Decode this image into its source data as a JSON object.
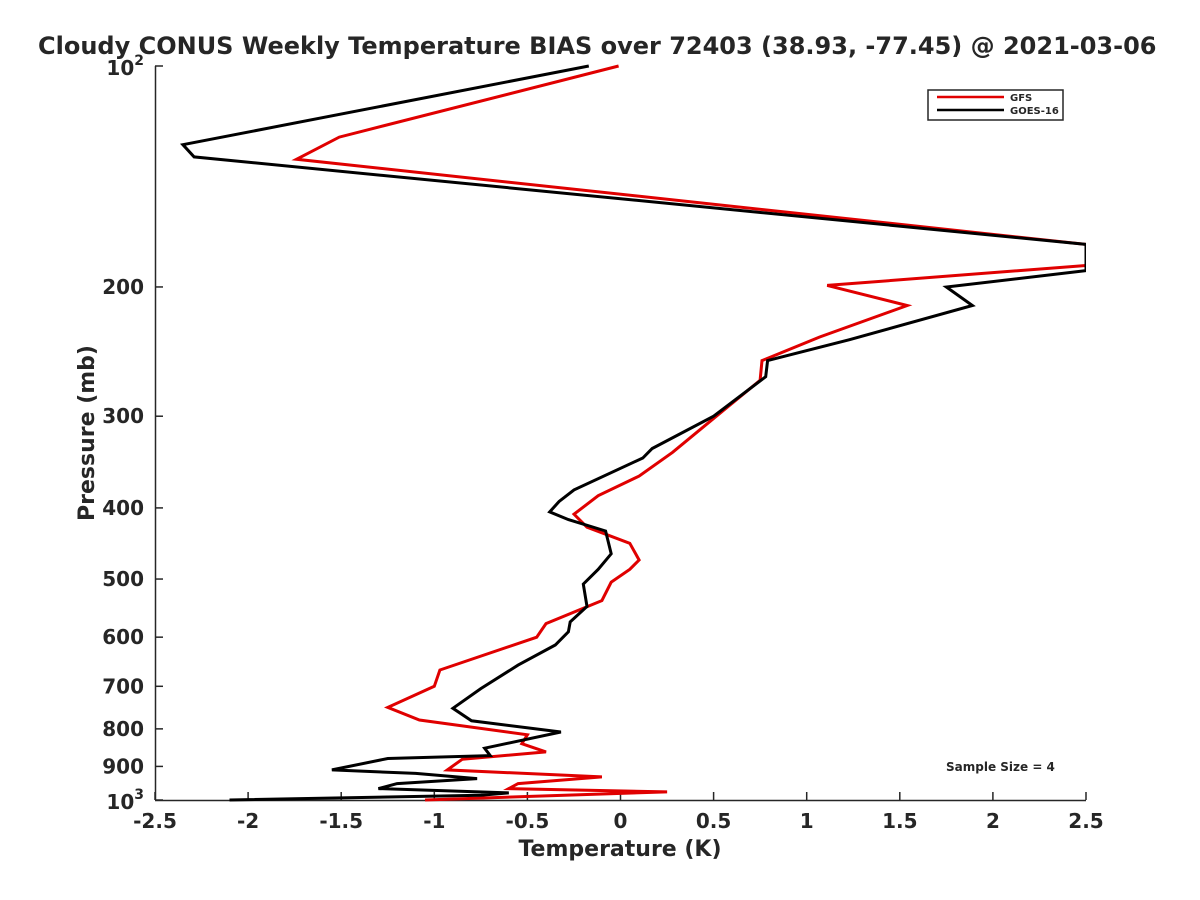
{
  "chart_data": {
    "type": "line",
    "title": "Cloudy CONUS Weekly Temperature BIAS over 72403 (38.93, -77.45) @ 2021-03-06",
    "xlabel": "Temperature (K)",
    "ylabel": "Pressure (mb)",
    "xlim": [
      -2.5,
      2.5
    ],
    "ylim": [
      1000,
      100
    ],
    "y_scale": "log",
    "y_reversed": true,
    "x_ticks": [
      -2.5,
      -2,
      -1.5,
      -1,
      -0.5,
      0,
      0.5,
      1,
      1.5,
      2,
      2.5
    ],
    "x_tick_labels": [
      "-2.5",
      "-2",
      "-1.5",
      "-1",
      "-0.5",
      "0",
      "0.5",
      "1",
      "1.5",
      "2",
      "2.5"
    ],
    "y_ticks_plain": [
      {
        "value": 200,
        "label": "200"
      },
      {
        "value": 300,
        "label": "300"
      },
      {
        "value": 400,
        "label": "400"
      },
      {
        "value": 500,
        "label": "500"
      },
      {
        "value": 600,
        "label": "600"
      },
      {
        "value": 700,
        "label": "700"
      },
      {
        "value": 800,
        "label": "800"
      },
      {
        "value": 900,
        "label": "900"
      }
    ],
    "y_ticks_pow": [
      {
        "value": 100,
        "base": "10",
        "exp": "2"
      },
      {
        "value": 1000,
        "base": "10",
        "exp": "3"
      }
    ],
    "grid": false,
    "legend_position": "top-right",
    "annotation": "Sample Size = 4",
    "series": [
      {
        "name": "GFS",
        "color": "#e00000",
        "points": [
          [
            -0.01,
            100
          ],
          [
            -1.51,
            125
          ],
          [
            -1.74,
            134
          ],
          [
            2.5,
            175
          ],
          [
            2.5,
            187
          ],
          [
            1.11,
            199
          ],
          [
            1.54,
            212
          ],
          [
            1.07,
            234
          ],
          [
            0.76,
            252
          ],
          [
            0.75,
            268
          ],
          [
            0.55,
            295
          ],
          [
            0.28,
            336
          ],
          [
            0.1,
            362
          ],
          [
            -0.12,
            385
          ],
          [
            -0.25,
            408
          ],
          [
            -0.18,
            425
          ],
          [
            0.05,
            447
          ],
          [
            0.1,
            471
          ],
          [
            0.05,
            485
          ],
          [
            -0.05,
            505
          ],
          [
            -0.1,
            535
          ],
          [
            -0.4,
            575
          ],
          [
            -0.45,
            600
          ],
          [
            -0.97,
            665
          ],
          [
            -1.0,
            700
          ],
          [
            -1.25,
            748
          ],
          [
            -1.08,
            778
          ],
          [
            -0.5,
            815
          ],
          [
            -0.53,
            838
          ],
          [
            -0.4,
            860
          ],
          [
            -0.85,
            880
          ],
          [
            -0.93,
            910
          ],
          [
            -0.1,
            930
          ],
          [
            -0.55,
            950
          ],
          [
            -0.6,
            965
          ],
          [
            0.25,
            975
          ],
          [
            -0.3,
            985
          ],
          [
            -1.05,
            1000
          ]
        ]
      },
      {
        "name": "GOES-16",
        "color": "#000000",
        "points": [
          [
            -0.17,
            100
          ],
          [
            -2.35,
            128
          ],
          [
            -2.29,
            133
          ],
          [
            2.5,
            175
          ],
          [
            2.5,
            190
          ],
          [
            1.75,
            200
          ],
          [
            1.89,
            212
          ],
          [
            1.23,
            236
          ],
          [
            0.79,
            252
          ],
          [
            0.78,
            265
          ],
          [
            0.5,
            300
          ],
          [
            0.17,
            332
          ],
          [
            0.12,
            342
          ],
          [
            -0.25,
            378
          ],
          [
            -0.33,
            392
          ],
          [
            -0.38,
            405
          ],
          [
            -0.28,
            415
          ],
          [
            -0.08,
            430
          ],
          [
            -0.05,
            462
          ],
          [
            -0.12,
            485
          ],
          [
            -0.2,
            508
          ],
          [
            -0.18,
            545
          ],
          [
            -0.27,
            572
          ],
          [
            -0.28,
            590
          ],
          [
            -0.35,
            615
          ],
          [
            -0.55,
            655
          ],
          [
            -0.75,
            705
          ],
          [
            -0.9,
            750
          ],
          [
            -0.8,
            780
          ],
          [
            -0.32,
            808
          ],
          [
            -0.73,
            850
          ],
          [
            -0.7,
            870
          ],
          [
            -1.25,
            878
          ],
          [
            -1.55,
            910
          ],
          [
            -1.1,
            920
          ],
          [
            -0.77,
            935
          ],
          [
            -1.2,
            950
          ],
          [
            -1.3,
            965
          ],
          [
            -0.6,
            978
          ],
          [
            -0.75,
            985
          ],
          [
            -2.1,
            1000
          ]
        ]
      }
    ]
  }
}
